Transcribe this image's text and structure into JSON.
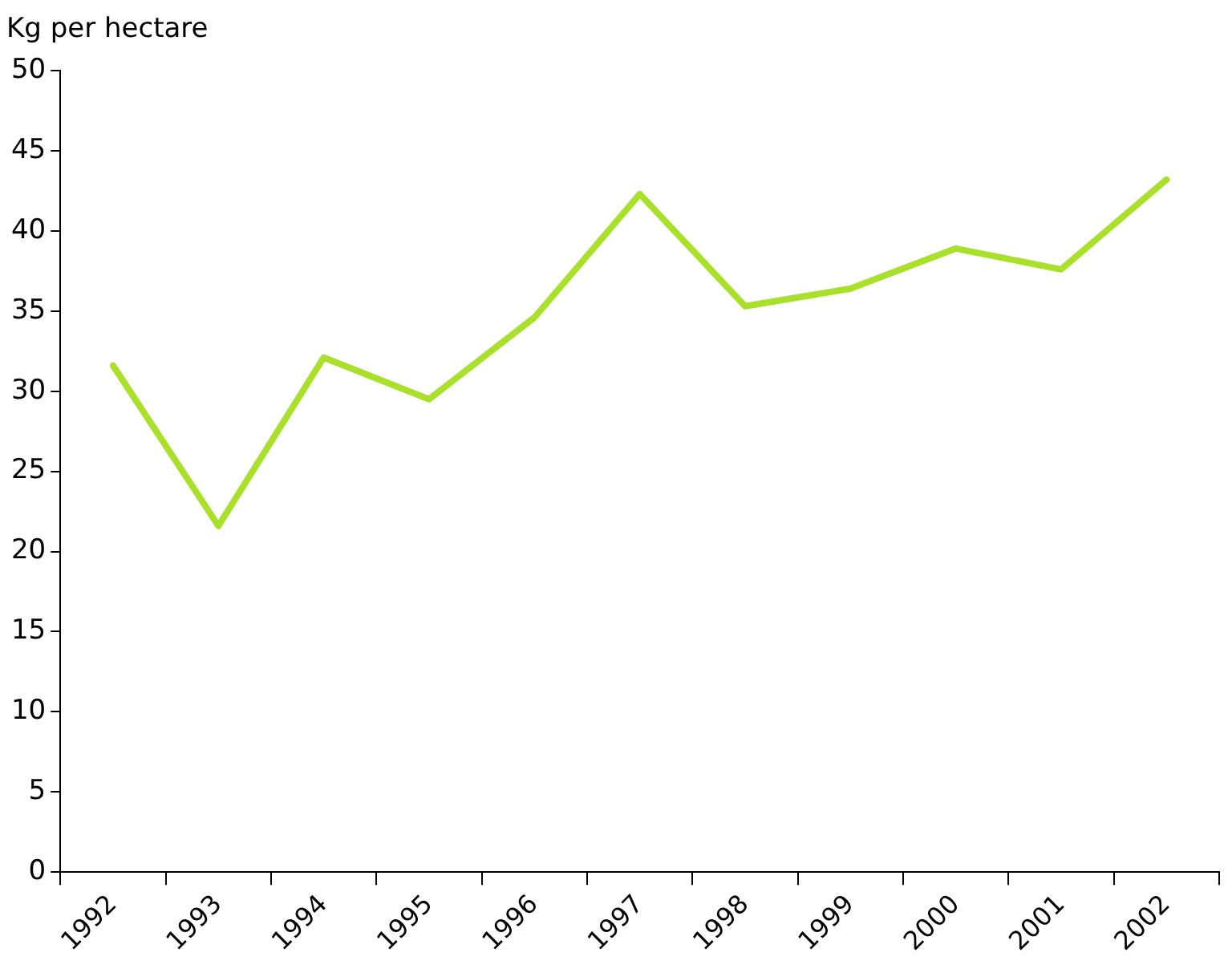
{
  "chart_data": {
    "type": "line",
    "ylabel": "Kg per hectare",
    "categories": [
      "1992",
      "1993",
      "1994",
      "1995",
      "1996",
      "1997",
      "1998",
      "1999",
      "2000",
      "2001",
      "2002"
    ],
    "series": [
      {
        "color": "#a8e02a",
        "values": [
          31.6,
          21.6,
          32.1,
          29.5,
          34.6,
          42.3,
          35.3,
          36.4,
          38.9,
          37.6,
          43.2
        ]
      }
    ],
    "ylim": [
      0,
      50
    ],
    "yticks": [
      0,
      5,
      10,
      15,
      20,
      25,
      30,
      35,
      40,
      45,
      50
    ],
    "grid": false,
    "legend": false,
    "marker": "none",
    "line_style": "solid"
  }
}
